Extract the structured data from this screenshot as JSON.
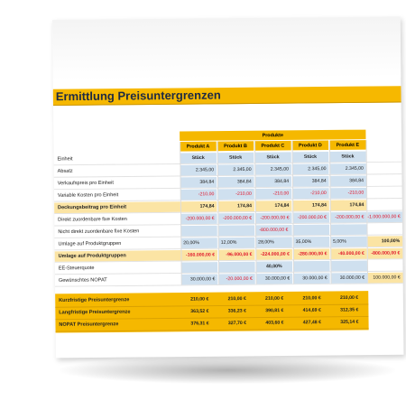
{
  "title": "Ermittlung Preisuntergrenzen",
  "group_header": "Produkte",
  "products": [
    "Produkt A",
    "Produkt B",
    "Produkt C",
    "Produkt D",
    "Produkt E"
  ],
  "rows": {
    "einheit": {
      "label": "Einheit",
      "values": [
        "Stück",
        "Stück",
        "Stück",
        "Stück",
        "Stück"
      ]
    },
    "absatz": {
      "label": "Absatz",
      "values": [
        "2.345,00",
        "2.345,00",
        "2.345,00",
        "2.345,00",
        "2.345,00"
      ]
    },
    "vkp": {
      "label": "Verkaufspreis pro Einheit",
      "values": [
        "384,84",
        "384,84",
        "384,84",
        "384,84",
        "384,84"
      ]
    },
    "varkosten": {
      "label": "Variable Kosten pro Einheit",
      "values": [
        "-210,00",
        "-210,00",
        "-210,00",
        "-210,00",
        "-210,00"
      ]
    },
    "db": {
      "label": "Deckungsbeitrag pro Einheit",
      "values": [
        "174,84",
        "174,84",
        "174,84",
        "174,84",
        "174,84"
      ]
    },
    "fixdirekt": {
      "label": "Direkt zuordenbare fixe Kosten",
      "values": [
        "-200.000,00 €",
        "-200.000,00 €",
        "-200.000,00 €",
        "-200.000,00 €",
        "-200.000,00 €"
      ],
      "extra": "-1.000.000,00 €"
    },
    "fixnicht": {
      "label": "Nicht direkt zuordenbare fixe Kosten",
      "value": "-800.000,00 €"
    },
    "umlage_pct": {
      "label": "Umlage auf Produktgruppen",
      "values": [
        "20,00%",
        "12,00%",
        "28,00%",
        "35,00%",
        "5,00%"
      ],
      "extra": "100,00%"
    },
    "umlage": {
      "label": "Umlage auf Produktgruppen",
      "values": [
        "-160.000,00 €",
        "-96.000,00 €",
        "-224.000,00 €",
        "-280.000,00 €",
        "-40.000,00 €"
      ],
      "extra": "-800.000,00 €"
    },
    "steuer": {
      "label": "EE-Steuerquote",
      "value": "40,00%"
    },
    "nopat": {
      "label": "Gewünschtes NOPAT",
      "values": [
        "30.000,00 €",
        "-20.000,00 €",
        "30.000,00 €",
        "30.000,00 €",
        "30.000,00 €"
      ],
      "extra": "100.000,00 €"
    }
  },
  "results": {
    "kurz": {
      "label": "Kurzfristige Preisuntergrenze",
      "values": [
        "210,00 €",
        "210,00 €",
        "210,00 €",
        "210,00 €",
        "210,00 €"
      ]
    },
    "lang": {
      "label": "Langfristige Preisuntergrenze",
      "values": [
        "363,52 €",
        "336,23 €",
        "390,81 €",
        "414,69 €",
        "312,35 €"
      ]
    },
    "nopatpu": {
      "label": "NOPAT Preisuntergrenze",
      "values": [
        "376,31 €",
        "327,70 €",
        "403,60 €",
        "427,48 €",
        "325,14 €"
      ]
    }
  },
  "colors": {
    "accent": "#f5b800",
    "light_yellow": "#fbe4a4",
    "blue": "#cfe0ef",
    "negative": "#e0142a"
  }
}
